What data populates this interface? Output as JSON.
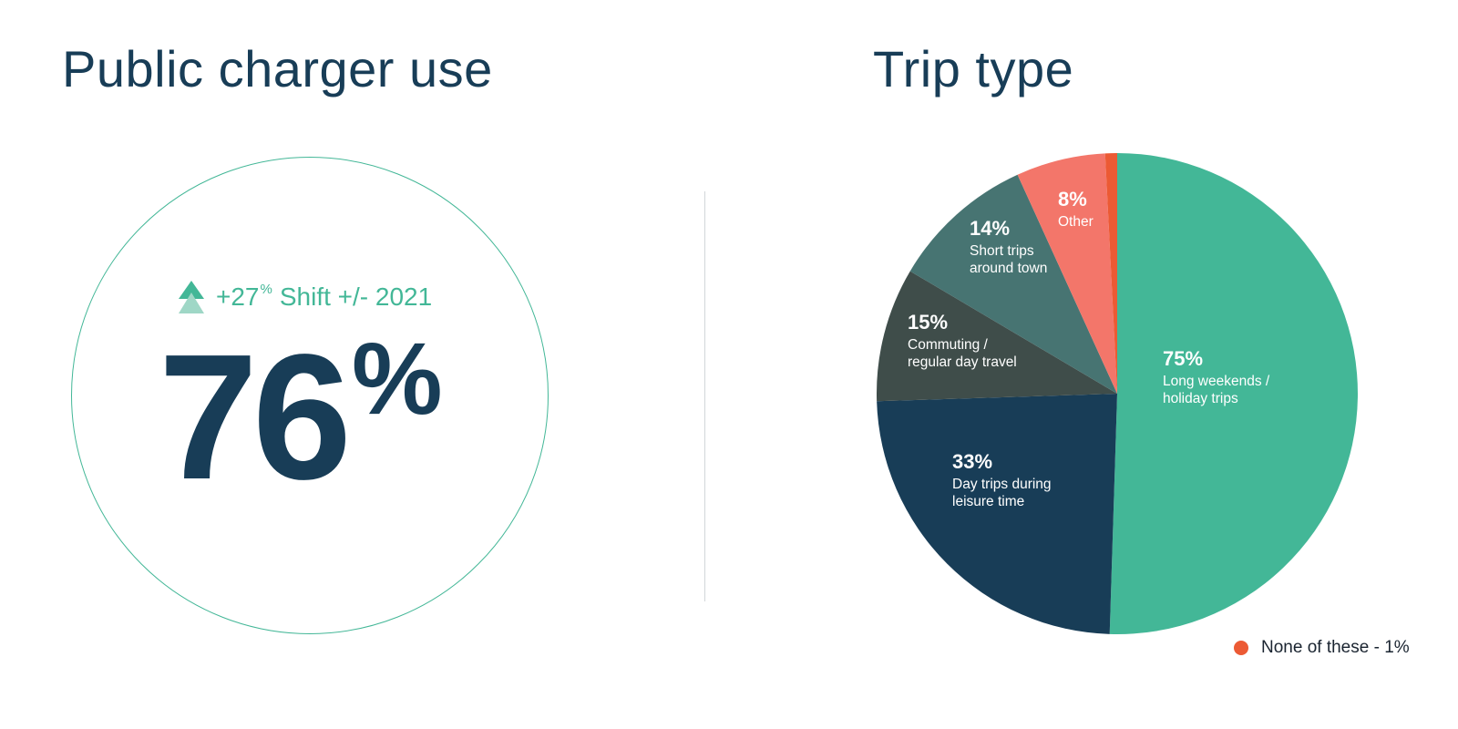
{
  "left_panel": {
    "title": "Public charger use",
    "shift_value": "+27",
    "shift_unit": "%",
    "shift_text": "Shift +/- 2021",
    "big_value": "76",
    "big_unit": "%",
    "icon": "double-up-arrow-icon",
    "ring_color": "#43b797"
  },
  "right_panel": {
    "title": "Trip type"
  },
  "chart_data": {
    "type": "pie",
    "title": "Trip type",
    "slices": [
      {
        "value_label": "75%",
        "label_lines": [
          "Long weekends /",
          "holiday trips"
        ],
        "share": 0.505,
        "color": "#43b797"
      },
      {
        "value_label": "33%",
        "label_lines": [
          "Day trips during",
          "leisure time"
        ],
        "share": 0.24,
        "color": "#183d57"
      },
      {
        "value_label": "15%",
        "label_lines": [
          "Commuting /",
          "regular day travel"
        ],
        "share": 0.09,
        "color": "#3f4d4a"
      },
      {
        "value_label": "14%",
        "label_lines": [
          "Short trips",
          "around town"
        ],
        "share": 0.097,
        "color": "#477472"
      },
      {
        "value_label": "8%",
        "label_lines": [
          "Other"
        ],
        "share": 0.06,
        "color": "#f3766a"
      },
      {
        "value_label": "",
        "label_lines": [],
        "share": 0.008,
        "color": "#ec5a34"
      }
    ],
    "legend": [
      {
        "label": "None of these - 1%",
        "color": "#ec5a34"
      }
    ],
    "legend_position": "bottom-right"
  }
}
